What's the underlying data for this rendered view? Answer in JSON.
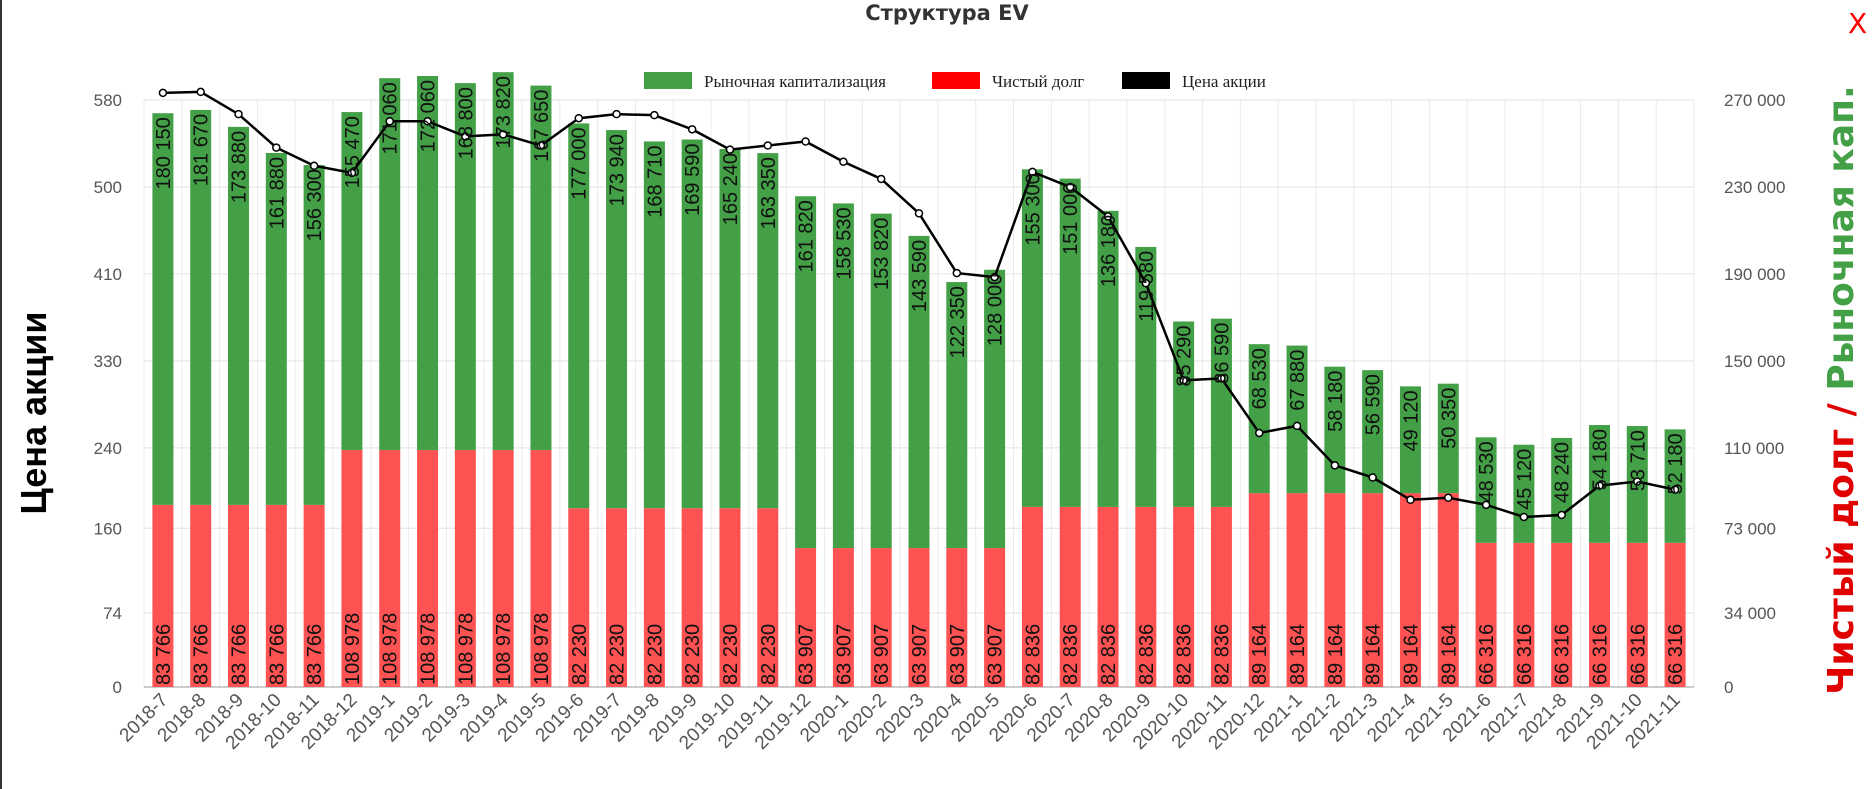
{
  "close_label": "X",
  "chart_data": {
    "type": "bar",
    "title": "Структура EV",
    "ylabel_left": "Цена акции",
    "ylabel_right_part1": "Чистый долг",
    "ylabel_right_sep": " / ",
    "ylabel_right_part2": "Рыночная кап.",
    "left_ticks": [
      "0",
      "74",
      "160",
      "240",
      "330",
      "410",
      "500",
      "580"
    ],
    "right_ticks": [
      "0",
      "34 000",
      "73 000",
      "110 000",
      "150 000",
      "190 000",
      "230 000",
      "270 000"
    ],
    "right_tick_values": [
      0,
      34000,
      73000,
      110000,
      150000,
      190000,
      230000,
      270000
    ],
    "ylim_left": [
      0,
      580
    ],
    "ylim_right": [
      0,
      270000
    ],
    "grid": true,
    "legend_position": "top-center",
    "legend": [
      {
        "label": "Рыночная капитализация",
        "color": "#43a047"
      },
      {
        "label": "Чистый долг",
        "color": "#ff0000"
      },
      {
        "label": "Цена акции",
        "color": "#000000"
      }
    ],
    "categories": [
      "2018-7",
      "2018-8",
      "2018-9",
      "2018-10",
      "2018-11",
      "2018-12",
      "2019-1",
      "2019-2",
      "2019-3",
      "2019-4",
      "2019-5",
      "2019-6",
      "2019-7",
      "2019-8",
      "2019-9",
      "2019-10",
      "2019-11",
      "2019-12",
      "2020-1",
      "2020-2",
      "2020-3",
      "2020-4",
      "2020-5",
      "2020-6",
      "2020-7",
      "2020-8",
      "2020-9",
      "2020-10",
      "2020-11",
      "2020-12",
      "2021-1",
      "2021-2",
      "2021-3",
      "2021-4",
      "2021-5",
      "2021-6",
      "2021-7",
      "2021-8",
      "2021-9",
      "2021-10",
      "2021-11"
    ],
    "series": [
      {
        "name": "Чистый долг",
        "stack": "ev",
        "color": "#ff5252",
        "values": [
          83766,
          83766,
          83766,
          83766,
          83766,
          108978,
          108978,
          108978,
          108978,
          108978,
          108978,
          82230,
          82230,
          82230,
          82230,
          82230,
          82230,
          63907,
          63907,
          63907,
          63907,
          63907,
          63907,
          82836,
          82836,
          82836,
          82836,
          82836,
          82836,
          89164,
          89164,
          89164,
          89164,
          89164,
          89164,
          66316,
          66316,
          66316,
          66316,
          66316,
          66316
        ],
        "labels": [
          "83 766",
          "83 766",
          "83 766",
          "83 766",
          "83 766",
          "108 978",
          "108 978",
          "108 978",
          "108 978",
          "108 978",
          "108 978",
          "82 230",
          "82 230",
          "82 230",
          "82 230",
          "82 230",
          "82 230",
          "63 907",
          "63 907",
          "63 907",
          "63 907",
          "63 907",
          "63 907",
          "82 836",
          "82 836",
          "82 836",
          "82 836",
          "82 836",
          "82 836",
          "89 164",
          "89 164",
          "89 164",
          "89 164",
          "89 164",
          "89 164",
          "66 316",
          "66 316",
          "66 316",
          "66 316",
          "66 316",
          "66 316"
        ]
      },
      {
        "name": "Рыночная капитализация",
        "stack": "ev",
        "color": "#43a047",
        "values": [
          180150,
          181670,
          173880,
          161880,
          156300,
          155470,
          171060,
          172060,
          168800,
          173820,
          167650,
          177000,
          173940,
          168710,
          169590,
          165240,
          163350,
          161820,
          158530,
          153820,
          143590,
          122350,
          128000,
          155300,
          151000,
          136180,
          119580,
          85290,
          86590,
          68530,
          67880,
          58180,
          56590,
          49120,
          50350,
          48530,
          45120,
          48240,
          54180,
          53710,
          52180
        ],
        "labels": [
          "180 150",
          "181 670",
          "173 880",
          "161 880",
          "156 300",
          "155 470",
          "171 060",
          "172 060",
          "168 800",
          "173 820",
          "167 650",
          "177 000",
          "173 940",
          "168 710",
          "169 590",
          "165 240",
          "163 350",
          "161 820",
          "158 530",
          "153 820",
          "143 590",
          "122 350",
          "128 000",
          "155 300",
          "151 000",
          "136 180",
          "119 580",
          "85 290",
          "86 590",
          "68 530",
          "67 880",
          "58 180",
          "56 590",
          "49 120",
          "50 350",
          "48 530",
          "45 120",
          "48 240",
          "54 180",
          "53 710",
          "52 180"
        ]
      },
      {
        "name": "Цена акции",
        "type": "line",
        "axis": "left",
        "color": "#000000",
        "values": [
          587,
          588,
          566,
          533,
          515,
          508,
          559,
          559,
          544,
          546,
          535,
          562,
          566,
          565,
          551,
          531,
          535,
          539,
          519,
          502,
          468,
          409,
          405,
          509,
          494,
          465,
          399,
          303,
          305,
          251,
          258,
          219,
          207,
          185,
          187,
          180,
          168,
          170,
          199,
          203,
          195
        ]
      }
    ]
  }
}
